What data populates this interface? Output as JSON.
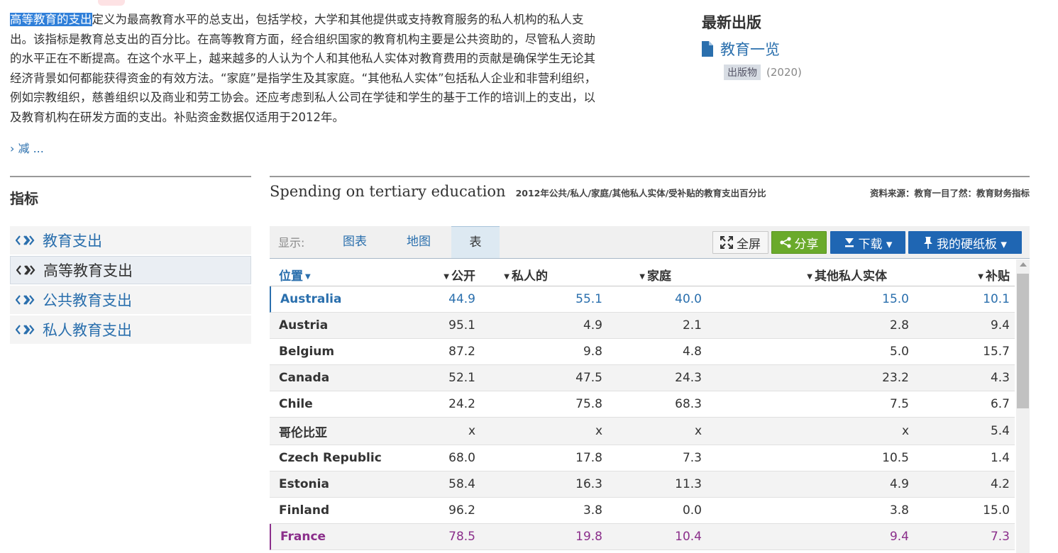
{
  "intro": {
    "highlight": "高等教育的支出",
    "text": "定义为最高教育水平的总支出，包括学校，大学和其他提供或支持教育服务的私人机构的私人支出。该指标是教育总支出的百分比。在高等教育方面，经合组织国家的教育机构主要是公共资助的，尽管私人资助的水平正在不断提高。在这个水平上，越来越多的人认为个人和其他私人实体对教育费用的贡献是确保学生无论其经济背景如何都能获得资金的有效方法。“家庭”是指学生及其家庭。“其他私人实体”包括私人企业和非营利组织，例如宗教组织，慈善组织以及商业和劳工协会。还应考虑到私人公司在学徒和学生的基于工作的培训上的支出，以及教育机构在研发方面的支出。补贴资金数据仅适用于2012年。",
    "reduce_link": "› 减 ..."
  },
  "latest": {
    "heading": "最新出版",
    "pub_title": "教育一览",
    "badge": "出版物",
    "year": "(2020)"
  },
  "indicators": {
    "heading": "指标",
    "items": [
      {
        "label": "教育支出"
      },
      {
        "label": "高等教育支出"
      },
      {
        "label": "公共教育支出"
      },
      {
        "label": "私人教育支出"
      }
    ]
  },
  "chart_header": {
    "title": "Spending on tertiary education",
    "subtitle": "2012年公共/私人/家庭/其他私人实体/受补贴的教育支出百分比",
    "source": "资料来源：教育一目了然：教育财务指标"
  },
  "toolbar": {
    "show_label": "显示:",
    "tabs": [
      "图表",
      "地图",
      "表"
    ],
    "fullscreen": "全屏",
    "share": "分享",
    "download": "下载 ▾",
    "clipboard": "我的硬纸板 ▾"
  },
  "table": {
    "headers": {
      "location": "位置",
      "public": "公开",
      "private": "私人的",
      "household": "家庭",
      "other": "其他私人实体",
      "subsidy": "补贴"
    },
    "rows": [
      {
        "name": "Australia",
        "v": [
          "44.9",
          "55.1",
          "40.0",
          "15.0",
          "10.1"
        ]
      },
      {
        "name": "Austria",
        "v": [
          "95.1",
          "4.9",
          "2.1",
          "2.8",
          "9.4"
        ]
      },
      {
        "name": "Belgium",
        "v": [
          "87.2",
          "9.8",
          "4.8",
          "5.0",
          "15.7"
        ]
      },
      {
        "name": "Canada",
        "v": [
          "52.1",
          "47.5",
          "24.3",
          "23.2",
          "4.3"
        ]
      },
      {
        "name": "Chile",
        "v": [
          "24.2",
          "75.8",
          "68.3",
          "7.5",
          "6.7"
        ]
      },
      {
        "name": "哥伦比亚",
        "v": [
          "x",
          "x",
          "x",
          "x",
          "5.4"
        ]
      },
      {
        "name": "Czech Republic",
        "v": [
          "68.0",
          "17.8",
          "7.3",
          "10.5",
          "1.4"
        ]
      },
      {
        "name": "Estonia",
        "v": [
          "58.4",
          "16.3",
          "11.3",
          "4.9",
          "4.2"
        ]
      },
      {
        "name": "Finland",
        "v": [
          "96.2",
          "3.8",
          "0.0",
          "3.8",
          "15.0"
        ]
      },
      {
        "name": "France",
        "v": [
          "78.5",
          "19.8",
          "10.4",
          "9.4",
          "7.3"
        ]
      }
    ]
  },
  "colors": {
    "link": "#2a6fad",
    "share": "#6aaa2b",
    "primary_button": "#1f66b3",
    "australia_highlight": "#2a6fad",
    "france_highlight": "#8b2f8b"
  }
}
